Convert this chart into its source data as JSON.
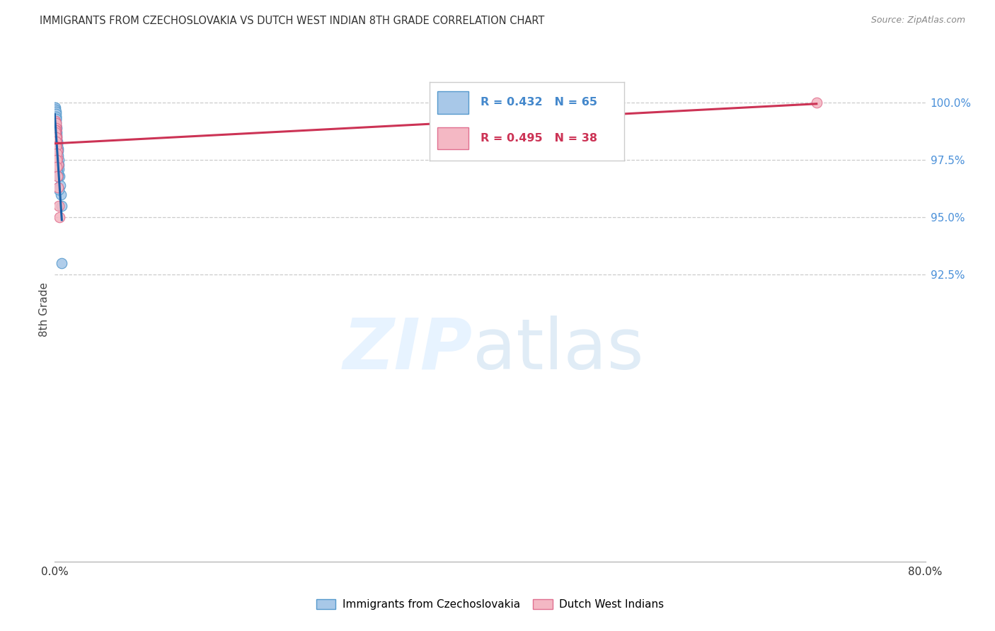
{
  "title": "IMMIGRANTS FROM CZECHOSLOVAKIA VS DUTCH WEST INDIAN 8TH GRADE CORRELATION CHART",
  "source": "Source: ZipAtlas.com",
  "ylabel": "8th Grade",
  "xlim": [
    0.0,
    80.0
  ],
  "ylim": [
    80.0,
    102.0
  ],
  "x_ticks": [
    0.0,
    20.0,
    40.0,
    60.0,
    80.0
  ],
  "x_tick_labels": [
    "0.0%",
    "",
    "",
    "",
    "80.0%"
  ],
  "y_ticks_right": [
    100.0,
    97.5,
    95.0,
    92.5
  ],
  "y_tick_labels_right": [
    "100.0%",
    "97.5%",
    "95.0%",
    "92.5%"
  ],
  "blue_face_color": "#a8c8e8",
  "blue_edge_color": "#5599cc",
  "pink_face_color": "#f4b8c4",
  "pink_edge_color": "#e07090",
  "blue_line_color": "#1a5fa8",
  "pink_line_color": "#cc3355",
  "legend_blue_r": "R = 0.432",
  "legend_blue_n": "N = 65",
  "legend_pink_r": "R = 0.495",
  "legend_pink_n": "N = 38",
  "legend_label_blue": "Immigrants from Czechoslovakia",
  "legend_label_pink": "Dutch West Indians",
  "blue_x": [
    0.0,
    0.0,
    0.0,
    0.0,
    0.0,
    0.0,
    0.0,
    0.0,
    0.0,
    0.0,
    0.04,
    0.04,
    0.04,
    0.06,
    0.06,
    0.06,
    0.08,
    0.08,
    0.09,
    0.09,
    0.1,
    0.1,
    0.1,
    0.12,
    0.12,
    0.14,
    0.14,
    0.16,
    0.16,
    0.18,
    0.2,
    0.22,
    0.25,
    0.28,
    0.3,
    0.32,
    0.35,
    0.38,
    0.4,
    0.45,
    0.5,
    0.55,
    0.6,
    0.65,
    0.02,
    0.02,
    0.04,
    0.05,
    0.06,
    0.07,
    0.08,
    0.09,
    0.1,
    0.11,
    0.12,
    0.14,
    0.15,
    0.16,
    0.18,
    0.2,
    0.22,
    0.25,
    0.28,
    0.3,
    0.35
  ],
  "blue_y": [
    99.8,
    99.7,
    99.6,
    99.5,
    99.4,
    99.3,
    99.2,
    99.1,
    98.9,
    98.8,
    99.8,
    99.6,
    99.4,
    99.7,
    99.5,
    99.3,
    99.6,
    99.4,
    99.5,
    99.3,
    99.4,
    99.2,
    99.0,
    99.3,
    99.1,
    99.0,
    98.8,
    98.9,
    98.7,
    98.6,
    98.5,
    98.3,
    98.2,
    98.0,
    97.9,
    97.7,
    97.5,
    97.3,
    97.1,
    96.8,
    96.4,
    96.0,
    95.5,
    93.0,
    98.9,
    98.7,
    98.8,
    98.6,
    98.7,
    98.5,
    98.5,
    98.3,
    98.4,
    98.2,
    98.2,
    98.0,
    97.9,
    97.8,
    97.6,
    97.5,
    97.3,
    97.1,
    96.9,
    96.8,
    96.2
  ],
  "pink_x": [
    0.0,
    0.0,
    0.0,
    0.04,
    0.04,
    0.04,
    0.06,
    0.06,
    0.06,
    0.08,
    0.08,
    0.1,
    0.1,
    0.1,
    0.12,
    0.12,
    0.14,
    0.14,
    0.16,
    0.18,
    0.2,
    0.22,
    0.25,
    0.28,
    0.02,
    0.04,
    0.06,
    0.08,
    0.1,
    0.12,
    0.15,
    0.18,
    0.2,
    0.25,
    0.3,
    0.4,
    0.45,
    70.0
  ],
  "pink_y": [
    98.9,
    98.7,
    98.5,
    99.2,
    99.0,
    98.8,
    99.1,
    98.9,
    98.7,
    99.0,
    98.8,
    99.0,
    98.8,
    98.6,
    99.1,
    98.9,
    98.8,
    98.6,
    98.5,
    98.3,
    98.1,
    97.9,
    97.6,
    97.3,
    98.7,
    98.8,
    98.7,
    98.5,
    98.3,
    98.1,
    97.8,
    97.5,
    97.2,
    96.8,
    96.3,
    95.5,
    95.0,
    100.0
  ]
}
